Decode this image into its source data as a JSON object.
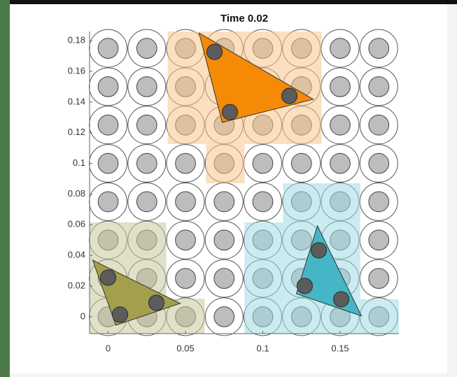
{
  "chart_data": {
    "type": "particles",
    "title": "Time 0.02",
    "xlim": [
      -0.012,
      0.188
    ],
    "ylim": [
      -0.011,
      0.186
    ],
    "xticks": [
      0,
      0.05,
      0.1,
      0.15
    ],
    "yticks": [
      0,
      0.02,
      0.04,
      0.06,
      0.08,
      0.1,
      0.12,
      0.14,
      0.16,
      0.18
    ],
    "grid_x": [
      0,
      0.025,
      0.05,
      0.075,
      0.1,
      0.125,
      0.15,
      0.175
    ],
    "grid_y": [
      0,
      0.025,
      0.05,
      0.075,
      0.1,
      0.125,
      0.15,
      0.175
    ],
    "outer_radius": 0.0122,
    "inner_radius": 0.0065,
    "particle_radius": 0.005,
    "regions": [
      {
        "color": "#f9c48a",
        "rects": [
          [
            0.0385,
            0.1126,
            0.138,
            0.186
          ],
          [
            0.0633,
            0.087,
            0.0882,
            0.1126
          ]
        ]
      },
      {
        "color": "#c9c79a",
        "rects": [
          [
            -0.012,
            -0.011,
            0.0376,
            0.0615
          ],
          [
            0.0376,
            -0.011,
            0.0624,
            0.0118
          ]
        ]
      },
      {
        "color": "#9fdbe2",
        "rects": [
          [
            0.0882,
            -0.011,
            0.1131,
            0.0615
          ],
          [
            0.1131,
            -0.011,
            0.163,
            0.087
          ],
          [
            0.163,
            -0.011,
            0.188,
            0.0114
          ]
        ]
      }
    ],
    "triangles": [
      {
        "color": "#f58a07",
        "x": [
          0.0588,
          0.1326,
          0.0738
        ],
        "y": [
          0.185,
          0.1418,
          0.1267
        ],
        "particles_x": [
          0.0688,
          0.1172,
          0.0787
        ],
        "particles_y": [
          0.1727,
          0.144,
          0.1335
        ]
      },
      {
        "color": "#a39f4c",
        "x": [
          -0.01,
          0.0466,
          0.005
        ],
        "y": [
          0.0369,
          0.0087,
          -0.0055
        ],
        "particles_x": [
          0,
          0.0312,
          0.0077
        ],
        "particles_y": [
          0.0255,
          0.0091,
          0.0014
        ]
      },
      {
        "color": "#44b6c6",
        "x": [
          0.1353,
          0.1638,
          0.1217
        ],
        "y": [
          0.0593,
          0.0005,
          0.015
        ],
        "particles_x": [
          0.1362,
          0.1271,
          0.1507
        ],
        "particles_y": [
          0.0433,
          0.0201,
          0.0114
        ]
      }
    ]
  }
}
